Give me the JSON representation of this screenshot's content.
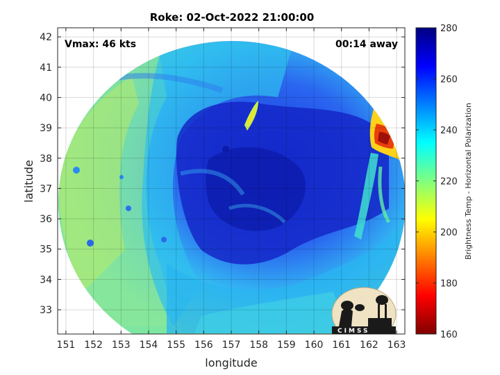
{
  "chart_data": {
    "type": "heatmap",
    "title": "Roke: 02-Oct-2022 21:00:00",
    "xlabel": "longitude",
    "ylabel": "latitude",
    "xlim": [
      150.7,
      163.3
    ],
    "ylim": [
      32.2,
      42.3
    ],
    "xticks": [
      151,
      152,
      153,
      154,
      155,
      156,
      157,
      158,
      159,
      160,
      161,
      162,
      163
    ],
    "yticks": [
      33,
      34,
      35,
      36,
      37,
      38,
      39,
      40,
      41,
      42
    ],
    "grid": true,
    "annotations": {
      "vmax": "Vmax: 46 kts",
      "away": "00:14 away"
    },
    "colorbar": {
      "label": "Brightness Temp - Horizontal Polarization",
      "min": 160,
      "max": 280,
      "ticks": [
        160,
        180,
        200,
        220,
        240,
        260,
        280
      ],
      "colormap": "jet"
    },
    "swath_center": [
      156.8,
      37.1
    ],
    "features": [
      {
        "name": "cold band center",
        "lon": 157.6,
        "lat": 37.5,
        "value": 265
      },
      {
        "name": "western region",
        "lon": 152.5,
        "lat": 37.0,
        "value": 225
      },
      {
        "name": "southern band",
        "lon": 157.0,
        "lat": 33.5,
        "value": 240
      },
      {
        "name": "warm spot north",
        "lon": 157.5,
        "lat": 39.0,
        "value": 205
      },
      {
        "name": "warm edge east",
        "lon": 162.4,
        "lat": 38.6,
        "value": 180
      }
    ]
  },
  "logo": {
    "text": "CIMSS"
  }
}
